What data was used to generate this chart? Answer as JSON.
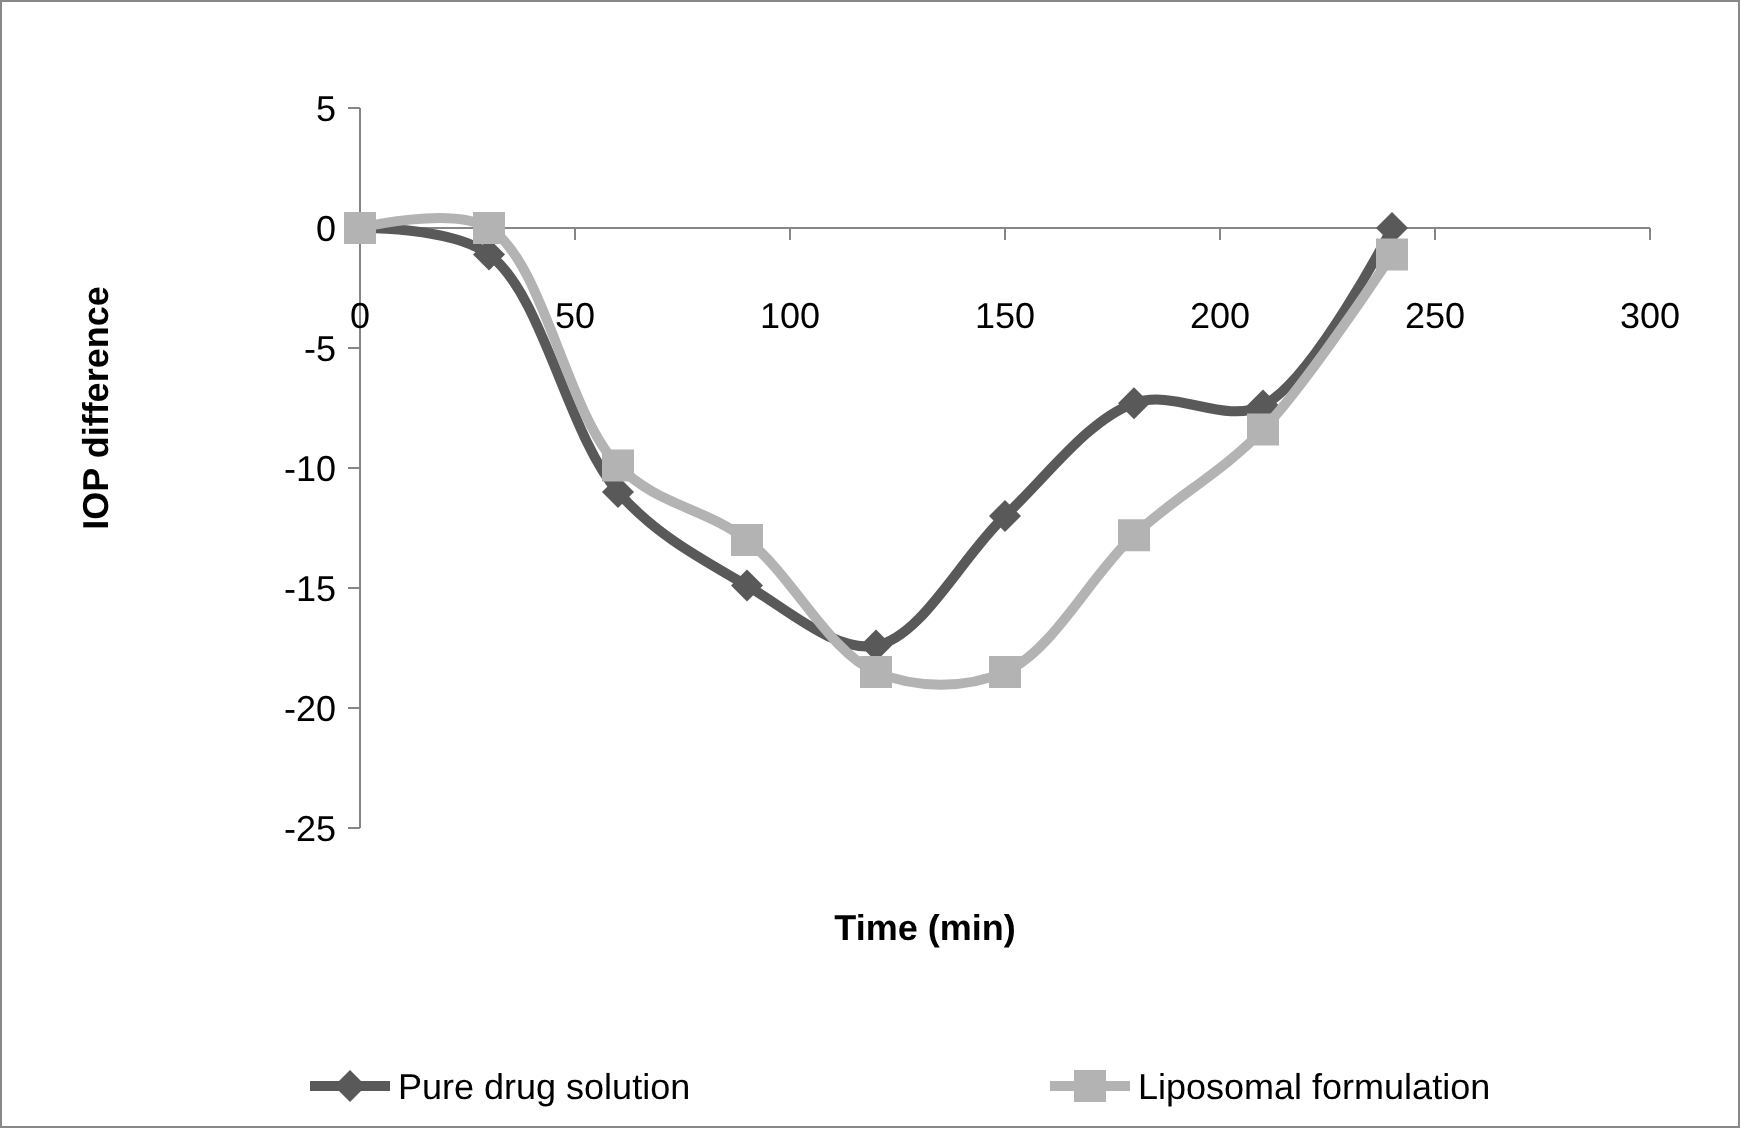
{
  "chart_data": {
    "type": "line",
    "xlabel": "Time (min)",
    "ylabel": "IOP difference",
    "x": [
      0,
      30,
      60,
      90,
      120,
      150,
      180,
      210,
      240
    ],
    "series": [
      {
        "name": "Pure drug solution",
        "color": "#595959",
        "marker": "diamond",
        "values": [
          0,
          -1.1,
          -11,
          -14.9,
          -17.4,
          -12,
          -7.3,
          -7.4,
          0
        ]
      },
      {
        "name": "Liposomal formulation",
        "color": "#b3b3b3",
        "marker": "square",
        "values": [
          0,
          0,
          -9.9,
          -13,
          -18.5,
          -18.5,
          -12.8,
          -8.4,
          -1.1
        ]
      }
    ],
    "xlim": [
      0,
      300
    ],
    "xticks": [
      0,
      50,
      100,
      150,
      200,
      250,
      300
    ],
    "ylim": [
      -25,
      5
    ],
    "yticks": [
      -25,
      -20,
      -15,
      -10,
      -5,
      0,
      5
    ],
    "grid": false,
    "legend": "bottom"
  }
}
